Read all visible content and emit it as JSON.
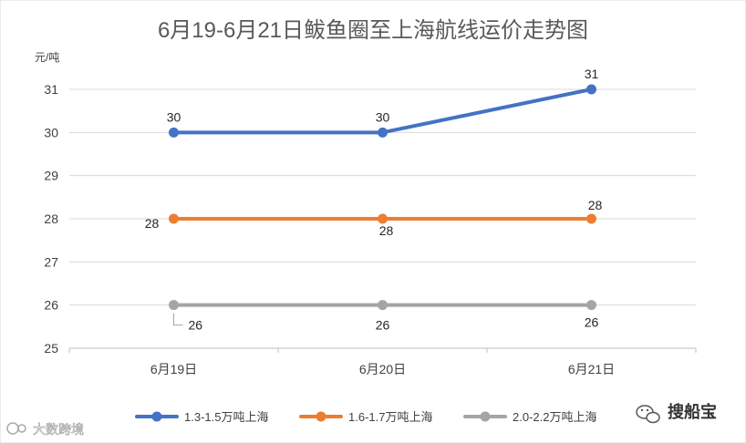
{
  "chart_data": {
    "type": "line",
    "title": "6月19-6月21日鲅鱼圈至上海航线运价走势图",
    "ylabel": "元/吨",
    "xlabel": "",
    "categories": [
      "6月19日",
      "6月20日",
      "6月21日"
    ],
    "ylim": [
      25,
      31
    ],
    "yticks": [
      25,
      26,
      27,
      28,
      29,
      30,
      31
    ],
    "grid": true,
    "legend_position": "bottom",
    "series": [
      {
        "name": "1.3-1.5万吨上海",
        "values": [
          30,
          30,
          31
        ],
        "color": "#4472c4"
      },
      {
        "name": "1.6-1.7万吨上海",
        "values": [
          28,
          28,
          28
        ],
        "color": "#ed7d31"
      },
      {
        "name": "2.0-2.2万吨上海",
        "values": [
          26,
          26,
          26
        ],
        "color": "#a5a5a5"
      }
    ]
  },
  "watermarks": {
    "right": "搜船宝",
    "right_icon": "wechat-icon",
    "left": "大数跨境"
  }
}
